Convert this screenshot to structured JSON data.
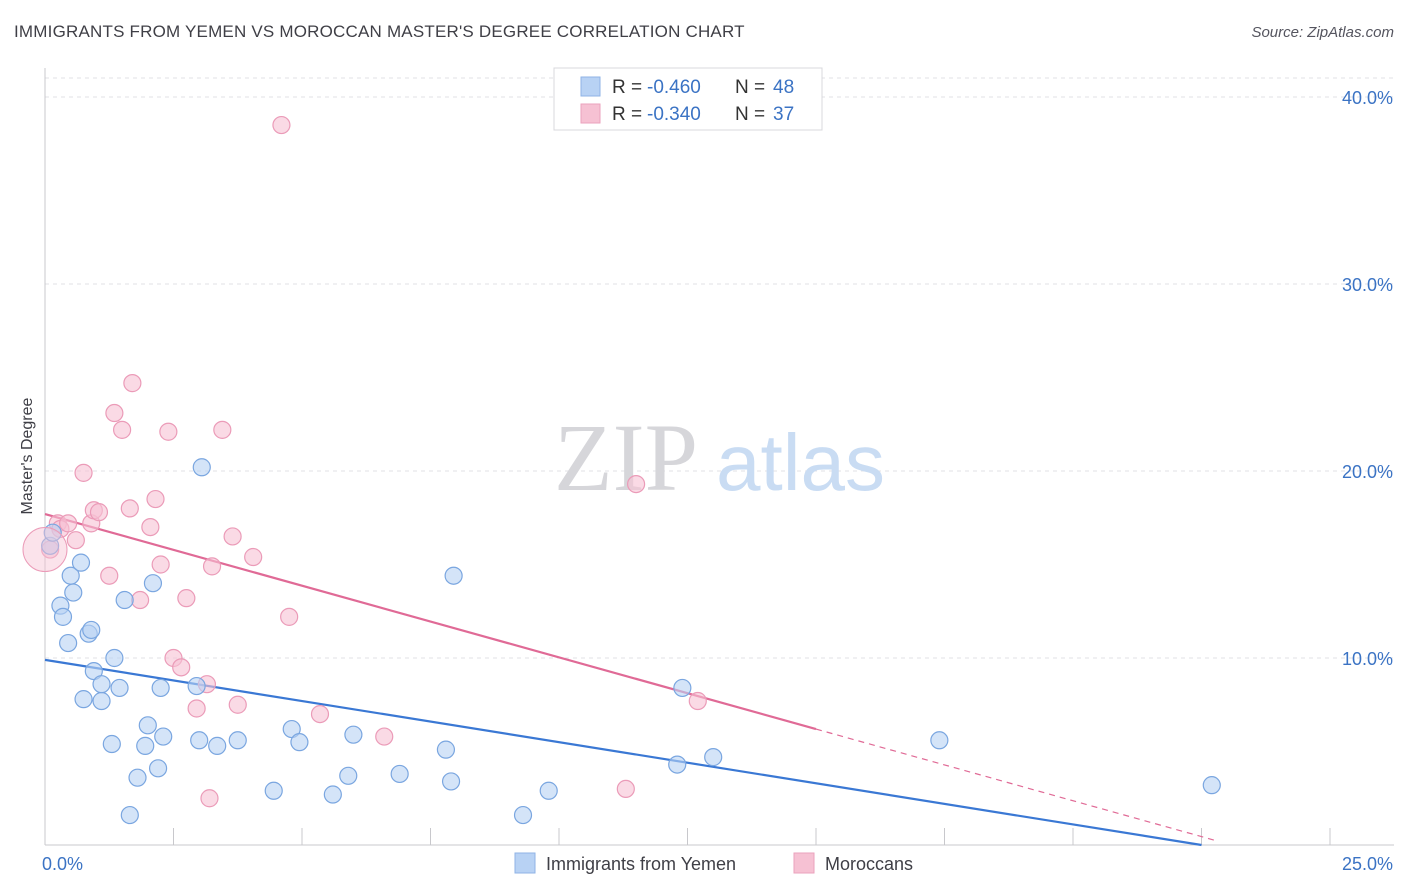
{
  "title": "IMMIGRANTS FROM YEMEN VS MOROCCAN MASTER'S DEGREE CORRELATION CHART",
  "source": "Source: ZipAtlas.com",
  "watermark": {
    "zip": "ZIP",
    "atlas": "atlas"
  },
  "colors": {
    "blue": "#3a78d4",
    "blue_fill": "#b8d2f4",
    "pink": "#e06a96",
    "pink_fill": "#f6c1d3",
    "text_blue": "#3b73c4"
  },
  "legend": {
    "rows": [
      {
        "r_label": "R = ",
        "r_value": "-0.460",
        "n_label": "N = ",
        "n_value": "48"
      },
      {
        "r_label": "R = ",
        "r_value": "-0.340",
        "n_label": "N = ",
        "n_value": "37"
      }
    ]
  },
  "chart_data": {
    "type": "scatter",
    "title": "IMMIGRANTS FROM YEMEN VS MOROCCAN MASTER'S DEGREE CORRELATION CHART",
    "xlabel": "",
    "ylabel": "Master's Degree",
    "xlim": [
      0,
      25
    ],
    "ylim": [
      0,
      40
    ],
    "x_tick_labels": [
      "0.0%",
      "25.0%"
    ],
    "y_tick_labels": [
      "10.0%",
      "20.0%",
      "30.0%",
      "40.0%"
    ],
    "y_ticks": [
      10,
      20,
      30,
      40
    ],
    "grid": true,
    "legend_position": "bottom-center",
    "series": [
      {
        "name": "Immigrants from Yemen",
        "color": "#3a78d4",
        "points": [
          [
            0.1,
            16.0
          ],
          [
            0.15,
            16.7
          ],
          [
            0.3,
            12.8
          ],
          [
            0.35,
            12.2
          ],
          [
            0.45,
            10.8
          ],
          [
            0.5,
            14.4
          ],
          [
            0.55,
            13.5
          ],
          [
            0.7,
            15.1
          ],
          [
            0.75,
            7.8
          ],
          [
            0.85,
            11.3
          ],
          [
            0.9,
            11.5
          ],
          [
            0.95,
            9.3
          ],
          [
            1.1,
            7.7
          ],
          [
            1.1,
            8.6
          ],
          [
            1.3,
            5.4
          ],
          [
            1.35,
            10.0
          ],
          [
            1.45,
            8.4
          ],
          [
            1.55,
            13.1
          ],
          [
            1.65,
            1.6
          ],
          [
            1.8,
            3.6
          ],
          [
            1.95,
            5.3
          ],
          [
            2.0,
            6.4
          ],
          [
            2.1,
            14.0
          ],
          [
            2.2,
            4.1
          ],
          [
            2.25,
            8.4
          ],
          [
            2.3,
            5.8
          ],
          [
            2.95,
            8.5
          ],
          [
            3.0,
            5.6
          ],
          [
            3.05,
            20.2
          ],
          [
            3.35,
            5.3
          ],
          [
            3.75,
            5.6
          ],
          [
            4.45,
            2.9
          ],
          [
            4.8,
            6.2
          ],
          [
            4.95,
            5.5
          ],
          [
            5.6,
            2.7
          ],
          [
            5.9,
            3.7
          ],
          [
            6.0,
            5.9
          ],
          [
            6.9,
            3.8
          ],
          [
            7.8,
            5.1
          ],
          [
            7.9,
            3.4
          ],
          [
            7.95,
            14.4
          ],
          [
            9.3,
            1.6
          ],
          [
            9.8,
            2.9
          ],
          [
            12.3,
            4.3
          ],
          [
            12.4,
            8.4
          ],
          [
            13.0,
            4.7
          ],
          [
            17.4,
            5.6
          ],
          [
            22.7,
            3.2
          ]
        ]
      },
      {
        "name": "Moroccans",
        "color": "#e06a96",
        "points": [
          [
            0.1,
            15.8
          ],
          [
            0.25,
            17.2
          ],
          [
            0.3,
            16.9
          ],
          [
            0.45,
            17.2
          ],
          [
            0.6,
            16.3
          ],
          [
            0.75,
            19.9
          ],
          [
            0.9,
            17.2
          ],
          [
            0.95,
            17.9
          ],
          [
            1.05,
            17.8
          ],
          [
            1.25,
            14.4
          ],
          [
            1.35,
            23.1
          ],
          [
            1.5,
            22.2
          ],
          [
            1.65,
            18.0
          ],
          [
            1.7,
            24.7
          ],
          [
            1.85,
            13.1
          ],
          [
            2.05,
            17.0
          ],
          [
            2.15,
            18.5
          ],
          [
            2.25,
            15.0
          ],
          [
            2.4,
            22.1
          ],
          [
            2.5,
            10.0
          ],
          [
            2.65,
            9.5
          ],
          [
            2.75,
            13.2
          ],
          [
            2.95,
            7.3
          ],
          [
            3.15,
            8.6
          ],
          [
            3.2,
            2.5
          ],
          [
            3.25,
            14.9
          ],
          [
            3.45,
            22.2
          ],
          [
            3.65,
            16.5
          ],
          [
            3.75,
            7.5
          ],
          [
            4.05,
            15.4
          ],
          [
            4.6,
            38.5
          ],
          [
            4.75,
            12.2
          ],
          [
            5.35,
            7.0
          ],
          [
            6.6,
            5.8
          ],
          [
            11.3,
            3.0
          ],
          [
            11.5,
            19.3
          ],
          [
            12.7,
            7.7
          ]
        ]
      }
    ],
    "trend_lines": [
      {
        "series": "Immigrants from Yemen",
        "x": [
          0,
          22.5
        ],
        "y": [
          9.9,
          0
        ]
      },
      {
        "series": "Moroccans",
        "x": [
          0,
          15.0
        ],
        "y": [
          17.7,
          6.2
        ],
        "dashed_extension_to_x": 22.8
      }
    ]
  }
}
